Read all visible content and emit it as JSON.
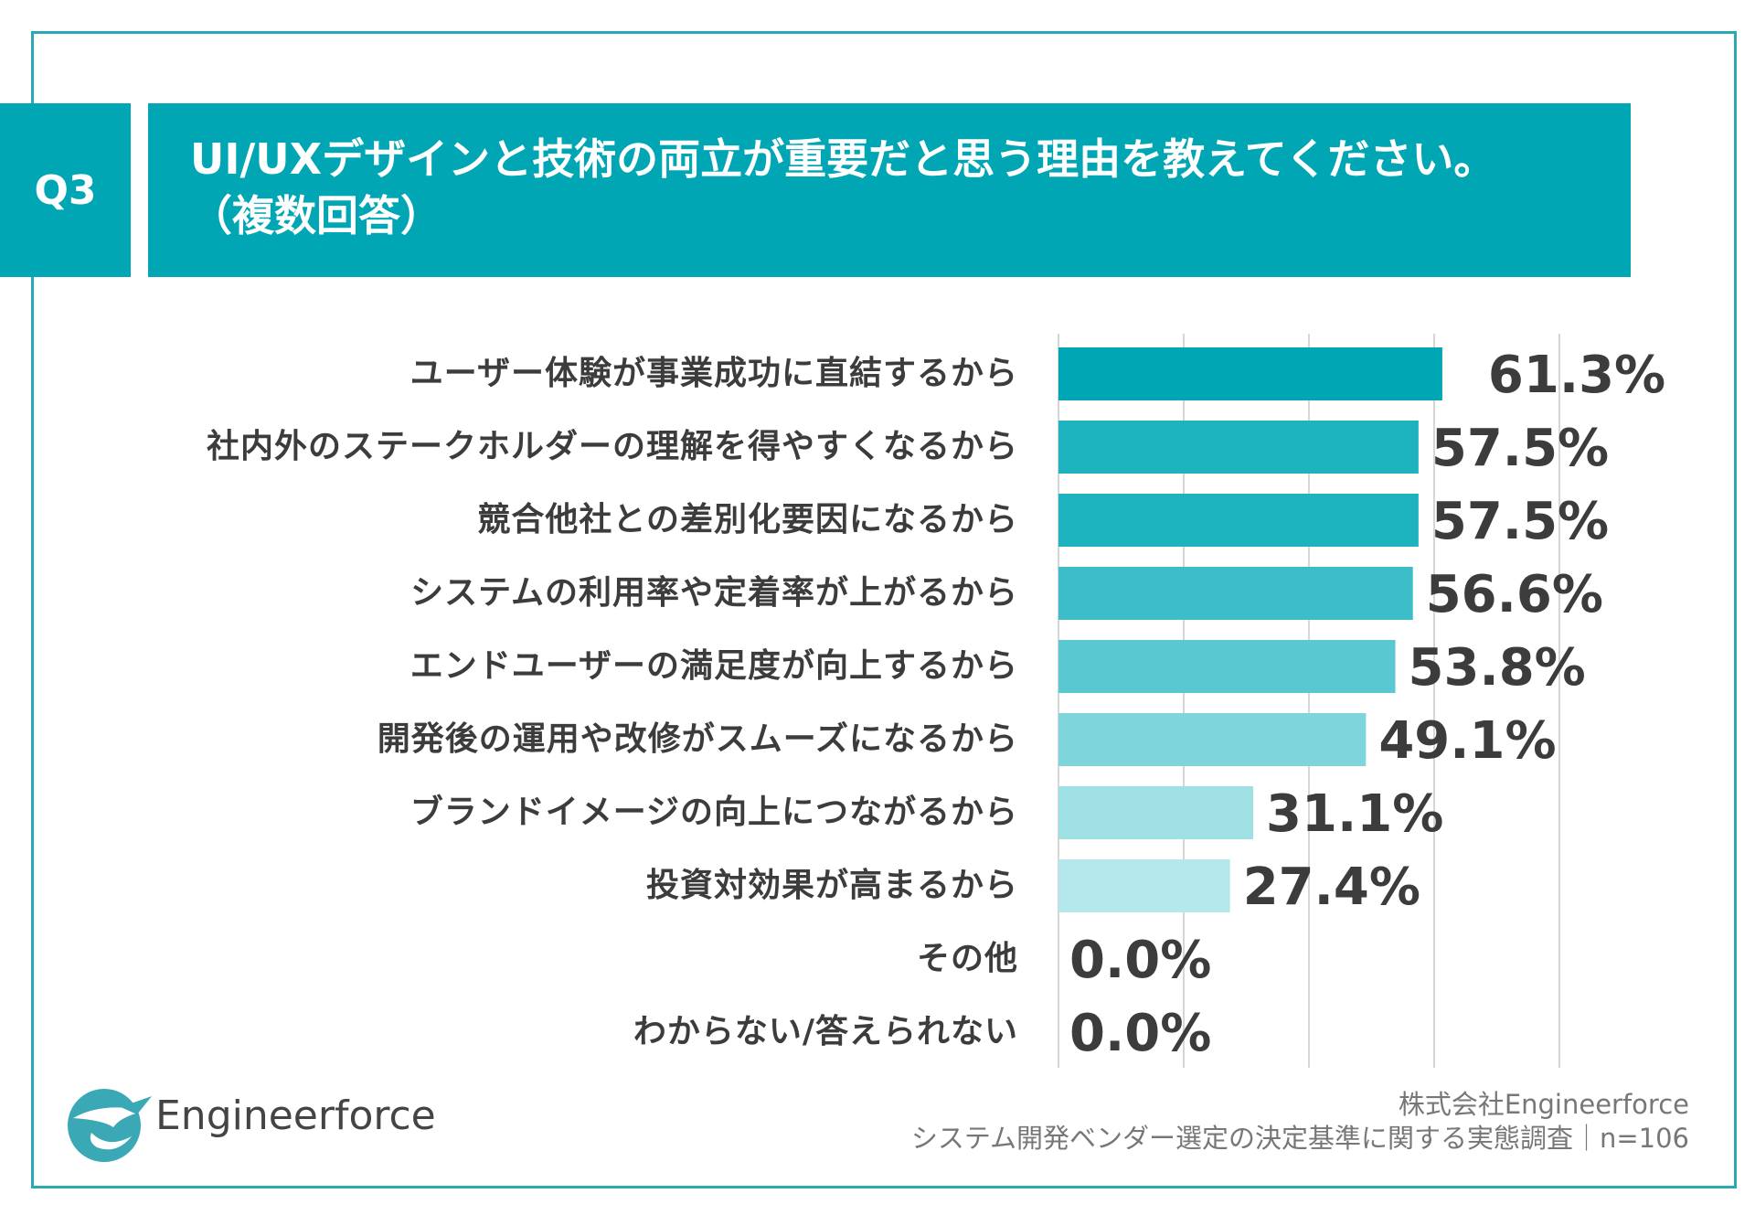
{
  "question": {
    "badge": "Q3",
    "title_line1": "UI/UXデザインと技術の両立が重要だと思う理由を教えてください。",
    "title_line2": "（複数回答）"
  },
  "chart_data": {
    "type": "bar",
    "orientation": "horizontal",
    "categories": [
      "ユーザー体験が事業成功に直結するから",
      "社内外のステークホルダーの理解を得やすくなるから",
      "競合他社との差別化要因になるから",
      "システムの利用率や定着率が上がるから",
      "エンドユーザーの満足度が向上するから",
      "開発後の運用や改修がスムーズになるから",
      "ブランドイメージの向上につながるから",
      "投資対効果が高まるから",
      "その他",
      "わからない/答えられない"
    ],
    "values": [
      61.3,
      57.5,
      57.5,
      56.6,
      53.8,
      49.1,
      31.1,
      27.4,
      0.0,
      0.0
    ],
    "value_labels": [
      "61.3%",
      "57.5%",
      "57.5%",
      "56.6%",
      "53.8%",
      "49.1%",
      "31.1%",
      "27.4%",
      "0.0%",
      "0.0%"
    ],
    "bar_colors": [
      "#00a6b4",
      "#1cb2be",
      "#1cb2be",
      "#3cbdc8",
      "#5ac8d1",
      "#7fd5dc",
      "#9fe0e5",
      "#b5e8ec",
      "#c8eef1",
      "#c8eef1"
    ],
    "xlim": [
      0,
      80
    ],
    "gridlines": [
      0,
      20,
      40,
      60,
      80
    ],
    "grid": true,
    "unit": "%"
  },
  "footer": {
    "company": "株式会社Engineerforce",
    "survey": "システム開発ベンダー選定の決定基準に関する実態調査｜n=106"
  },
  "logo": {
    "text": "Engineerforce",
    "icon": "bird-logo-icon",
    "color": "#3aa9b5"
  }
}
